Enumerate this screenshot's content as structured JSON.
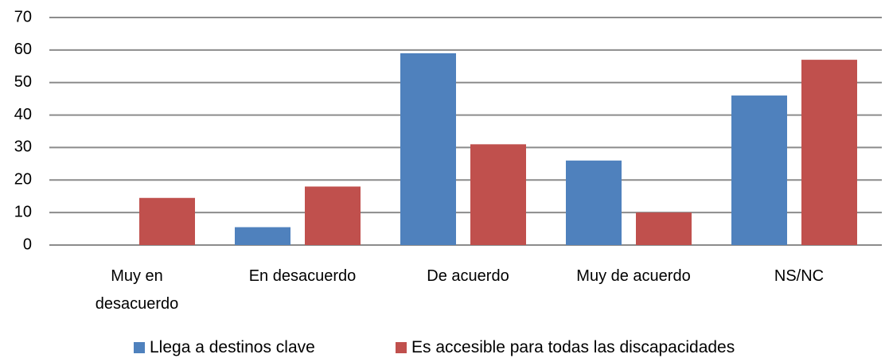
{
  "chart_data": {
    "type": "bar",
    "categories": [
      "Muy en desacuerdo",
      "En desacuerdo",
      "De acuerdo",
      "Muy de acuerdo",
      "NS/NC"
    ],
    "series": [
      {
        "name": "Llega a destinos clave",
        "color": "#4f81bd",
        "values": [
          0,
          5.5,
          59,
          26,
          46
        ]
      },
      {
        "name": "Es accesible para todas las discapacidades",
        "color": "#c0504d",
        "values": [
          14.5,
          18,
          31,
          10,
          57
        ]
      }
    ],
    "ylim": [
      0,
      70
    ],
    "yticks": [
      0,
      10,
      20,
      30,
      40,
      50,
      60,
      70
    ],
    "grid": true,
    "legend": "bottom"
  }
}
